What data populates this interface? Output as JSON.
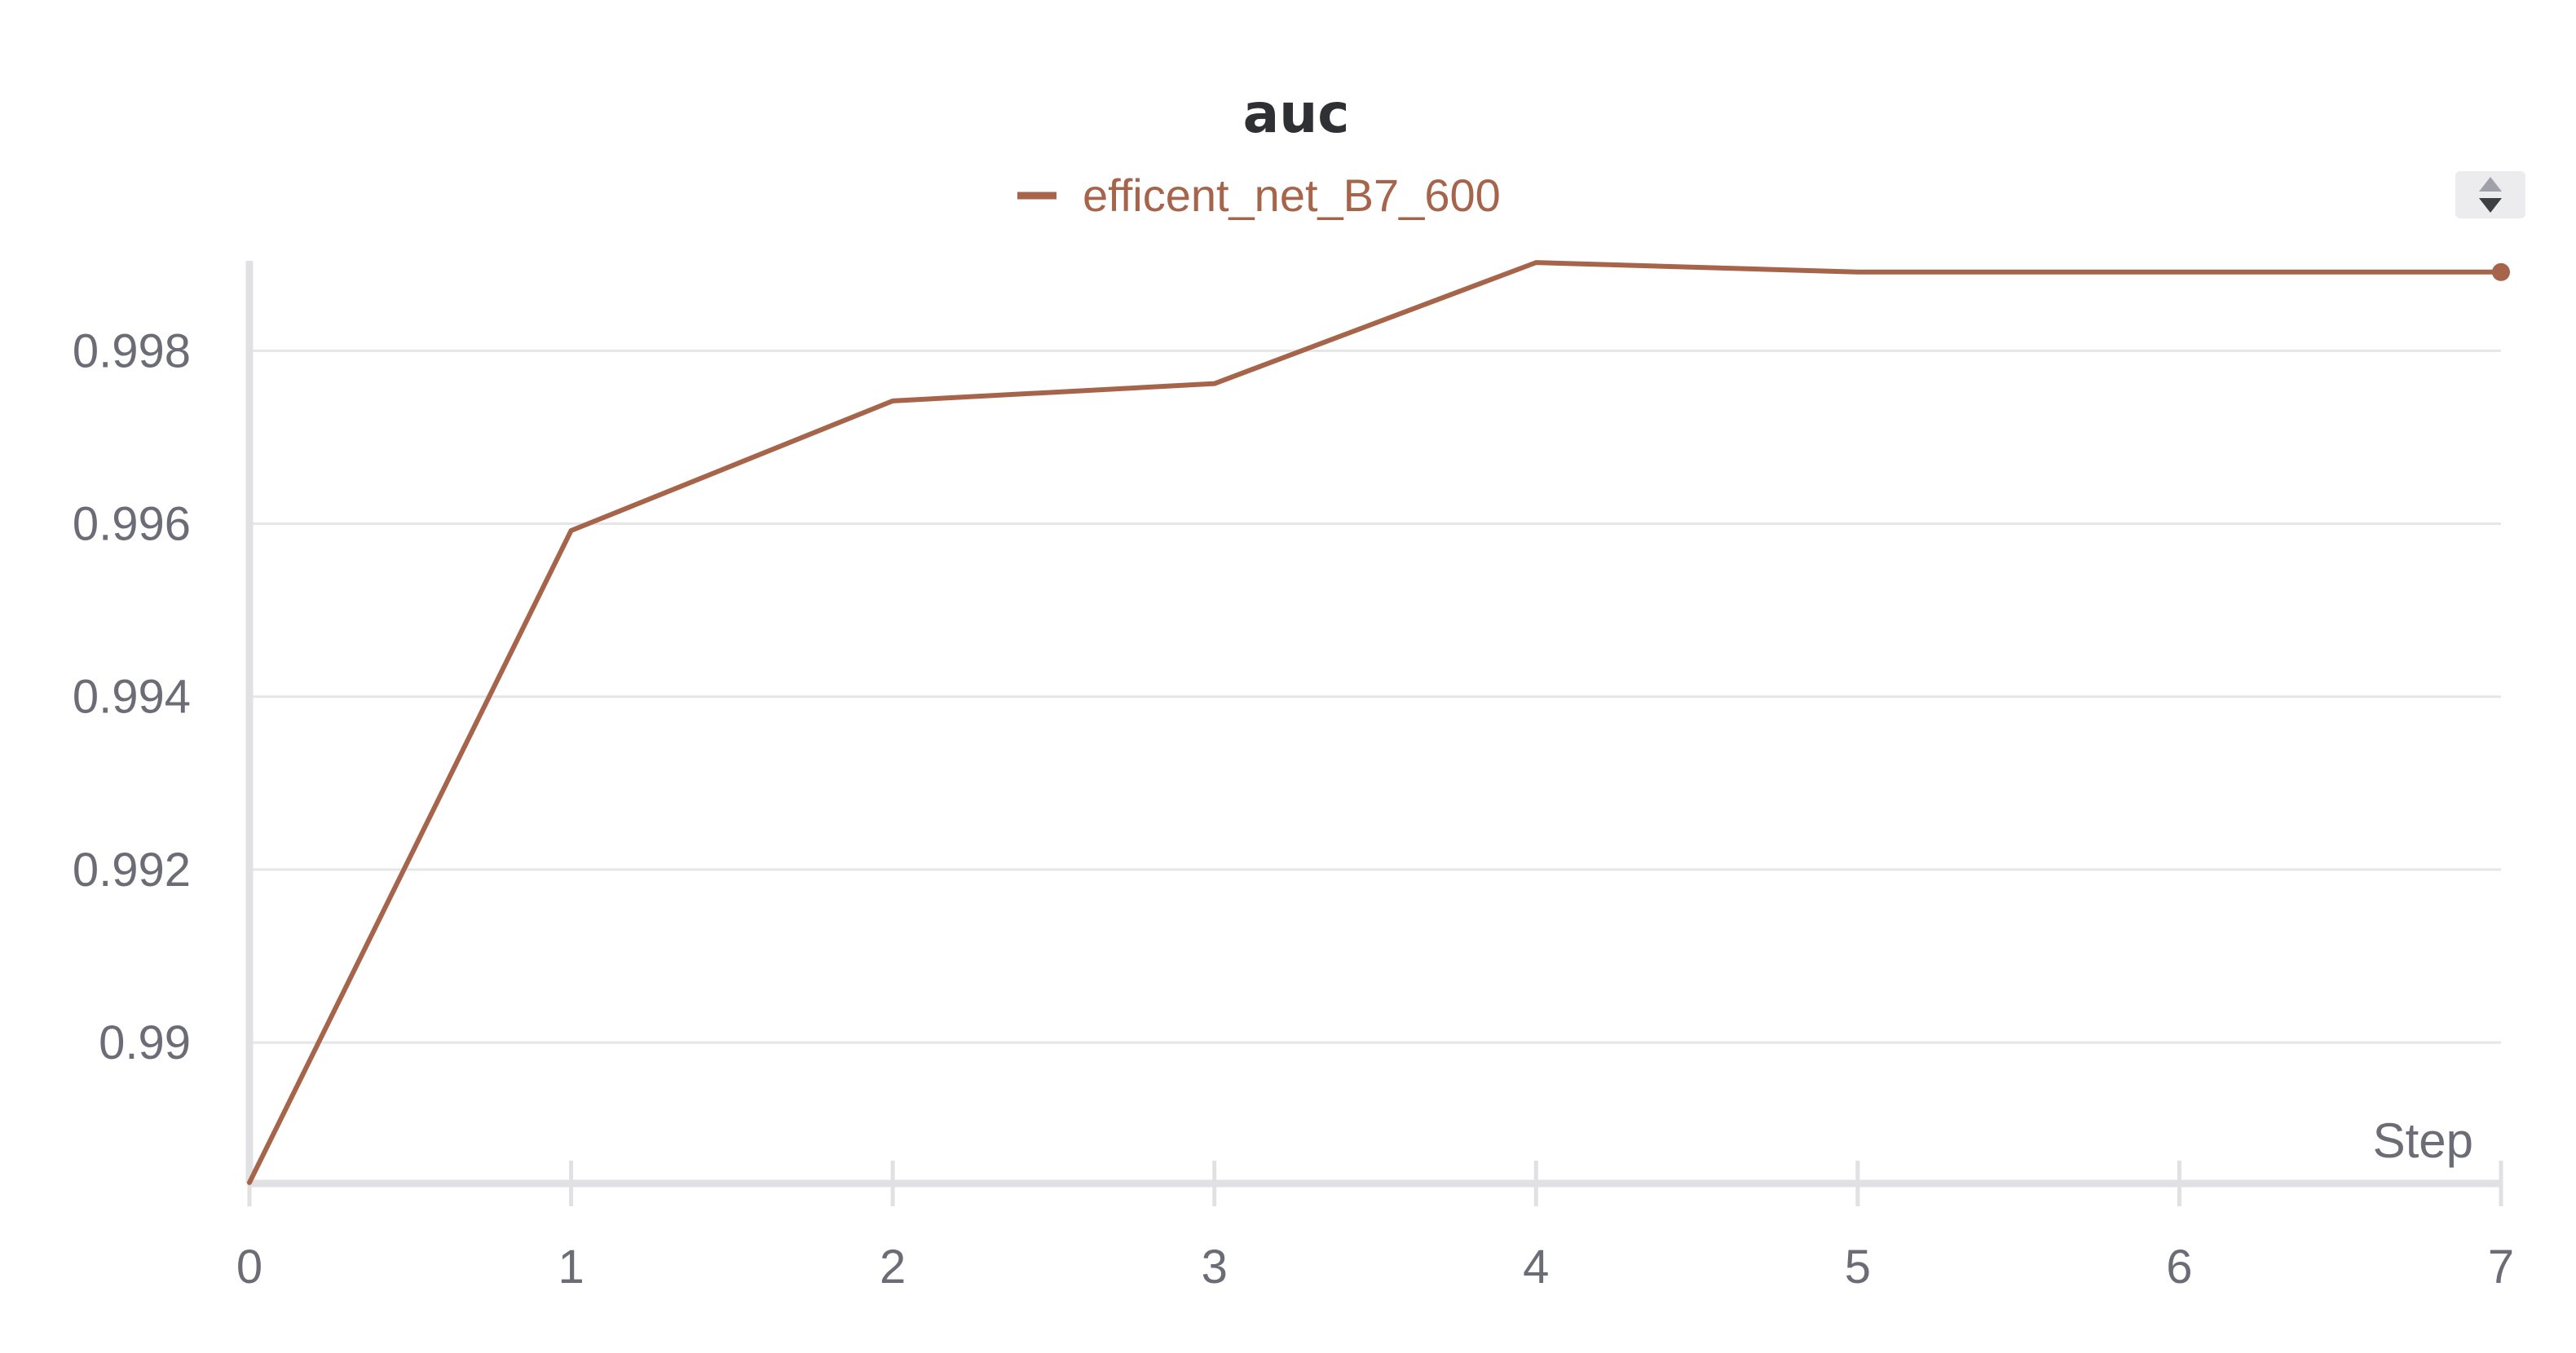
{
  "chart_data": {
    "type": "line",
    "title": "auc",
    "xlabel": "Step",
    "ylabel": "",
    "x": [
      0,
      1,
      2,
      3,
      4,
      5,
      6,
      7
    ],
    "xlim": [
      0,
      7
    ],
    "ylim": [
      0.98837,
      0.99904
    ],
    "xticks": [
      "0",
      "1",
      "2",
      "3",
      "4",
      "5",
      "6",
      "7"
    ],
    "yticks": [
      0.99,
      0.992,
      0.994,
      0.996,
      0.998
    ],
    "ytick_labels": [
      "0.99",
      "0.992",
      "0.994",
      "0.996",
      "0.998"
    ],
    "grid": "horizontal",
    "legend_position": "top-center",
    "series": [
      {
        "name": "efficent_net_B7_600",
        "color": "#a6644a",
        "values": [
          0.98838,
          0.99592,
          0.99742,
          0.99762,
          0.99902,
          0.99891,
          0.99891,
          0.99891
        ]
      }
    ]
  },
  "controls": {
    "sort_toggle_icon": "sort-up-down-icon"
  }
}
